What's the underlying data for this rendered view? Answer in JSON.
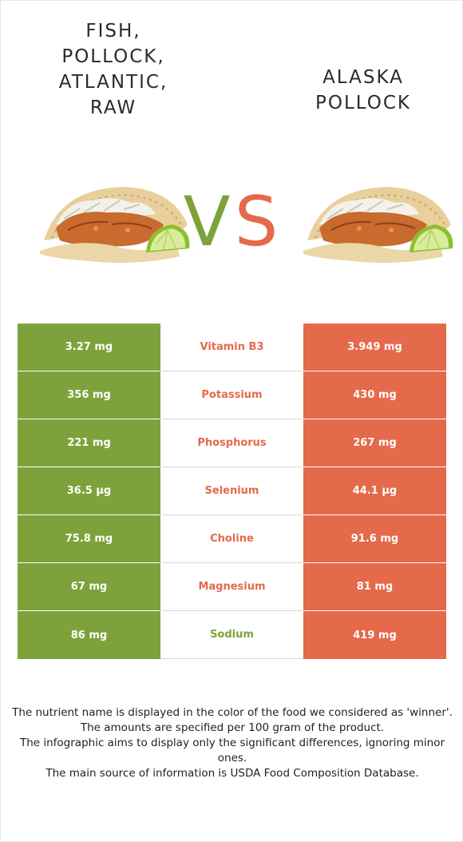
{
  "left_food": {
    "name_lines": [
      "FISH,",
      "POLLOCK,",
      "ATLANTIC,",
      "RAW"
    ]
  },
  "right_food": {
    "name_lines": [
      "ALASKA",
      "POLLOCK"
    ]
  },
  "vs": {
    "v_letter": "V",
    "s_letter": "S",
    "v_color": "#7da23b",
    "s_color": "#e5694b"
  },
  "colors": {
    "left": "#7da23b",
    "right": "#e5694b"
  },
  "icons": {
    "left_image": "fish-taco-image",
    "right_image": "fish-taco-image"
  },
  "nutrients": [
    {
      "name": "Vitamin B3",
      "left": "3.27 mg",
      "right": "3.949 mg",
      "winner_color": "#e5694b"
    },
    {
      "name": "Potassium",
      "left": "356 mg",
      "right": "430 mg",
      "winner_color": "#e5694b"
    },
    {
      "name": "Phosphorus",
      "left": "221 mg",
      "right": "267 mg",
      "winner_color": "#e5694b"
    },
    {
      "name": "Selenium",
      "left": "36.5 µg",
      "right": "44.1 µg",
      "winner_color": "#e5694b"
    },
    {
      "name": "Choline",
      "left": "75.8 mg",
      "right": "91.6 mg",
      "winner_color": "#e5694b"
    },
    {
      "name": "Magnesium",
      "left": "67 mg",
      "right": "81 mg",
      "winner_color": "#e5694b"
    },
    {
      "name": "Sodium",
      "left": "86 mg",
      "right": "419 mg",
      "winner_color": "#7da23b"
    }
  ],
  "footer": {
    "line1": "The nutrient name is displayed in the color of the food we considered as 'winner'.",
    "line2": "The amounts are specified per 100 gram of the product.",
    "line3": "The infographic aims to display only the significant differences, ignoring minor ones.",
    "line4": "The main source of information is USDA Food Composition Database."
  }
}
